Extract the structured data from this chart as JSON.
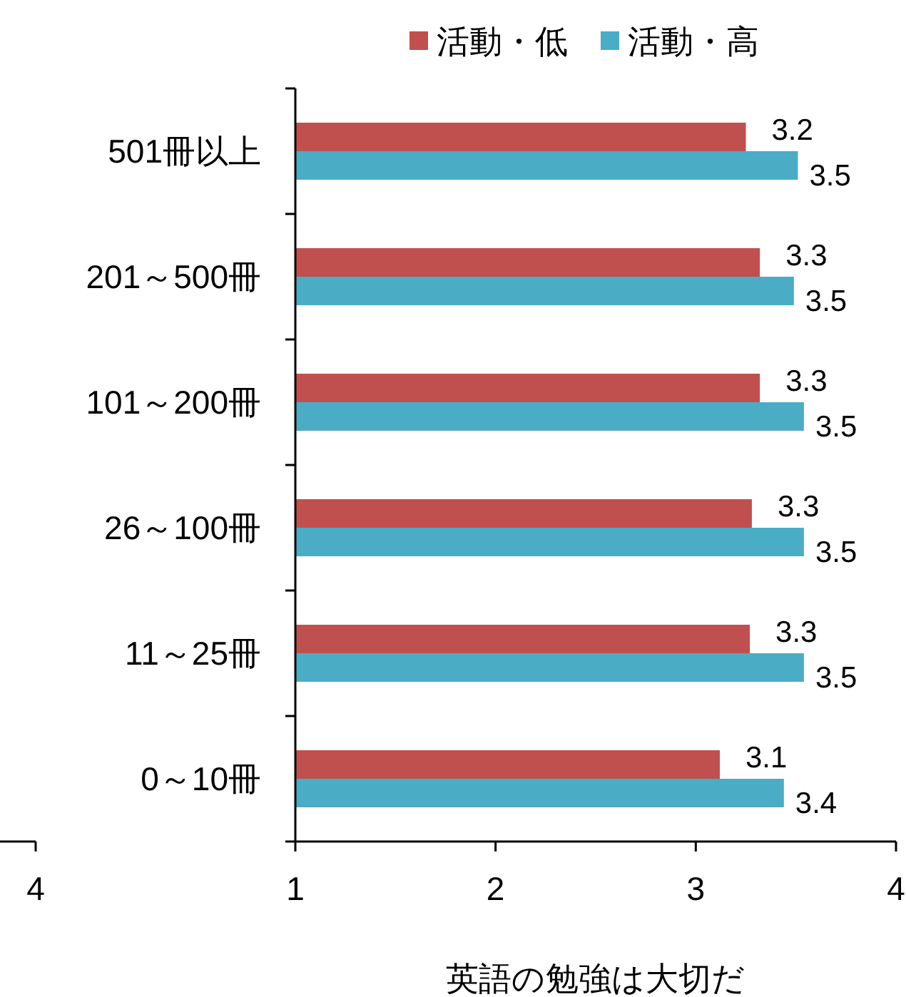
{
  "chart_data": {
    "type": "bar",
    "orientation": "horizontal",
    "categories": [
      "501冊以上",
      "201～500冊",
      "101～200冊",
      "26～100冊",
      "11～25冊",
      "0～10冊"
    ],
    "series": [
      {
        "name": "活動・低",
        "color": "#c0504d",
        "values": [
          3.25,
          3.32,
          3.32,
          3.28,
          3.27,
          3.12
        ],
        "value_labels": [
          "3.2",
          "3.3",
          "3.3",
          "3.3",
          "3.3",
          "3.1"
        ]
      },
      {
        "name": "活動・高",
        "color": "#4bacc6",
        "values": [
          3.51,
          3.49,
          3.54,
          3.54,
          3.54,
          3.44
        ],
        "value_labels": [
          "3.5",
          "3.5",
          "3.5",
          "3.5",
          "3.5",
          "3.4"
        ]
      }
    ],
    "xlim": [
      1,
      4
    ],
    "xticks": [
      1,
      2,
      3,
      4
    ],
    "xlabel": "英語の勉強は大切だ",
    "legend": "top right",
    "annotations": [
      "4"
    ]
  }
}
